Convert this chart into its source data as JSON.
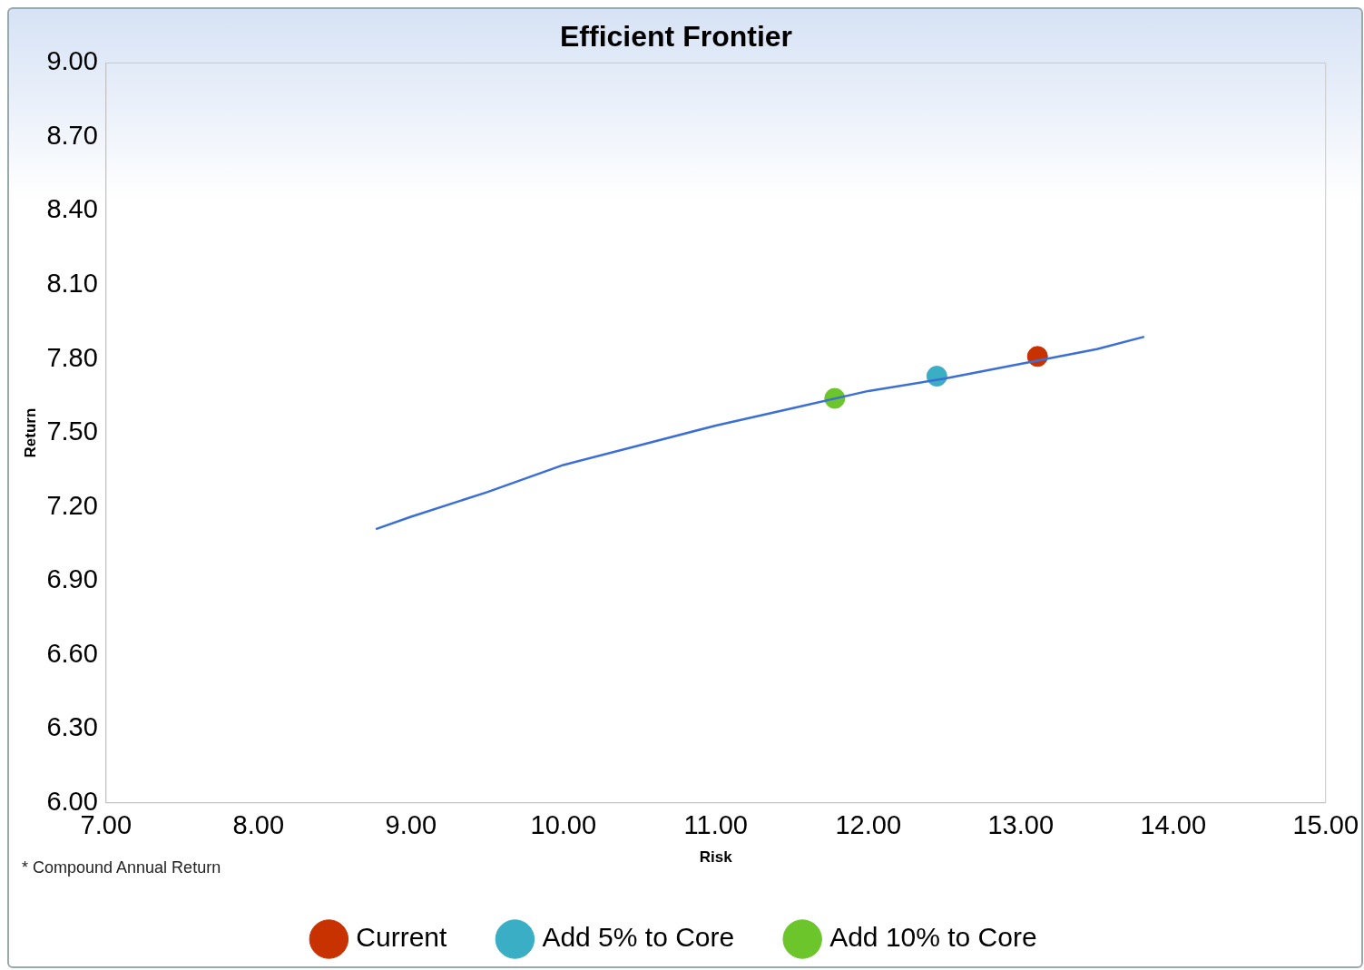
{
  "chart_data": {
    "type": "scatter",
    "title": "Efficient Frontier",
    "xlabel": "Risk",
    "ylabel": "Return",
    "xlim": [
      7,
      15
    ],
    "ylim": [
      6,
      9
    ],
    "xticks": [
      {
        "value": 7,
        "label": "7.00"
      },
      {
        "value": 8,
        "label": "8.00"
      },
      {
        "value": 9,
        "label": "9.00"
      },
      {
        "value": 10,
        "label": "10.00"
      },
      {
        "value": 11,
        "label": "11.00"
      },
      {
        "value": 12,
        "label": "12.00"
      },
      {
        "value": 13,
        "label": "13.00"
      },
      {
        "value": 14,
        "label": "14.00"
      },
      {
        "value": 15,
        "label": "15.00"
      }
    ],
    "yticks": [
      {
        "value": 6,
        "label": "6.00"
      },
      {
        "value": 6.3,
        "label": "6.30"
      },
      {
        "value": 6.6,
        "label": "6.60"
      },
      {
        "value": 6.9,
        "label": "6.90"
      },
      {
        "value": 7.2,
        "label": "7.20"
      },
      {
        "value": 7.5,
        "label": "7.50"
      },
      {
        "value": 7.8,
        "label": "7.80"
      },
      {
        "value": 8.1,
        "label": "8.10"
      },
      {
        "value": 8.4,
        "label": "8.40"
      },
      {
        "value": 8.7,
        "label": "8.70"
      },
      {
        "value": 9,
        "label": "9.00"
      }
    ],
    "grid": false,
    "legend": "bottom",
    "annotations": [
      "* Compound Annual Return"
    ],
    "series": [
      {
        "type": "line",
        "color": "#3b6fd6",
        "marker": "none",
        "x": [
          8.77,
          9,
          9.5,
          10,
          10.5,
          11,
          11.5,
          12,
          12.5,
          13,
          13.5,
          13.81
        ],
        "values": [
          7.11,
          7.16,
          7.26,
          7.37,
          7.45,
          7.53,
          7.6,
          7.67,
          7.72,
          7.78,
          7.84,
          7.89
        ]
      },
      {
        "name": "Current",
        "color": "#c83200",
        "marker": "circle",
        "x": [
          13.11
        ],
        "values": [
          7.81
        ]
      },
      {
        "name": "Add 5% to Core",
        "color": "#3aaec4",
        "marker": "circle",
        "x": [
          12.45
        ],
        "values": [
          7.73
        ]
      },
      {
        "name": "Add 10% to Core",
        "color": "#6cc52a",
        "marker": "circle",
        "x": [
          11.78
        ],
        "values": [
          7.64
        ]
      }
    ]
  }
}
